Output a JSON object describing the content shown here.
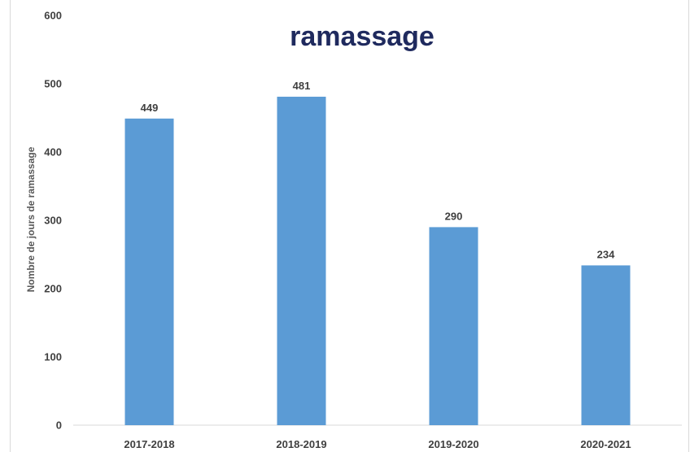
{
  "chart_data": {
    "type": "bar",
    "title_line_1": "ramassage",
    "ylabel": "Nombre de jours de ramassage",
    "xlabel": "",
    "categories": [
      "2017-2018",
      "2018-2019",
      "2019-2020",
      "2020-2021"
    ],
    "values": [
      449,
      481,
      290,
      234
    ],
    "data_labels": [
      "449",
      "481",
      "290",
      "234"
    ],
    "ylim": [
      0,
      600
    ],
    "yticks": [
      0,
      100,
      200,
      300,
      400,
      500,
      600
    ],
    "ytick_labels": [
      "0",
      "100",
      "200",
      "300",
      "400",
      "500",
      "600"
    ],
    "grid": false,
    "legend": "none",
    "bar_color": "#5b9bd5",
    "title_color": "#1f2a5e"
  }
}
